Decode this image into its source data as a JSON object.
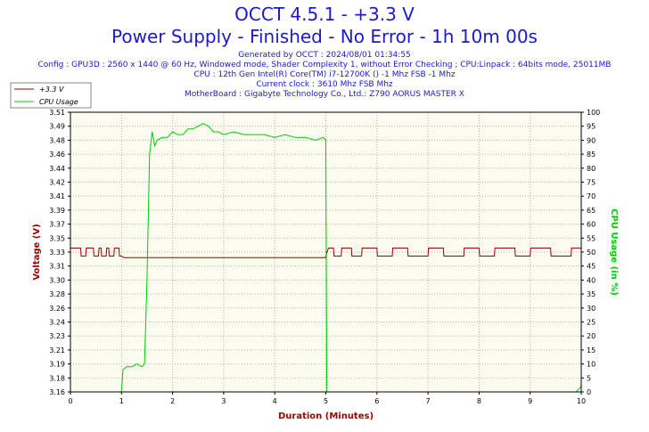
{
  "header": {
    "title": "OCCT 4.5.1 - +3.3 V",
    "subtitle": "Power Supply - Finished - No Error - 1h 10m 00s",
    "info_lines": [
      "Generated by OCCT : 2024/08/01 01:34:55",
      "Config : GPU3D : 2560 x 1440 @ 60 Hz, Windowed mode, Shader Complexity 1, without Error Checking ; CPU:Linpack : 64bits mode, 25011MB",
      "CPU : 12th Gen Intel(R) Core(TM) i7-12700K () -1 Mhz FSB -1 Mhz",
      "Current clock : 3610 Mhz FSB  Mhz",
      "MotherBoard : Gigabyte Technology Co., Ltd.: Z790 AORUS MASTER X"
    ]
  },
  "chart_data": {
    "type": "line",
    "xlabel": "Duration (Minutes)",
    "ylabel": "Voltage (V)",
    "y2label": "CPU Usage (in %)",
    "xlim": [
      0,
      10
    ],
    "ylim": [
      3.16,
      3.51
    ],
    "y2lim": [
      0,
      100
    ],
    "x_ticks": [
      0,
      1,
      2,
      3,
      4,
      5,
      6,
      7,
      8,
      9,
      10
    ],
    "y_ticks": [
      3.16,
      3.18,
      3.19,
      3.21,
      3.23,
      3.24,
      3.26,
      3.28,
      3.3,
      3.31,
      3.33,
      3.35,
      3.37,
      3.39,
      3.41,
      3.42,
      3.44,
      3.46,
      3.48,
      3.49,
      3.51
    ],
    "y2_ticks": [
      0,
      5,
      10,
      15,
      20,
      25,
      30,
      35,
      40,
      45,
      50,
      55,
      60,
      65,
      70,
      75,
      80,
      85,
      90,
      95,
      100
    ],
    "grid": true,
    "legend": "top-left",
    "series": [
      {
        "name": "+3.3 V",
        "axis": "left",
        "color": "#a00000",
        "x": [
          0.0,
          0.2,
          0.21,
          0.3,
          0.31,
          0.45,
          0.46,
          0.55,
          0.56,
          0.6,
          0.61,
          0.7,
          0.71,
          0.75,
          0.76,
          0.85,
          0.86,
          0.95,
          0.96,
          1.0,
          1.05,
          1.5,
          2.0,
          3.0,
          4.0,
          4.99,
          5.05,
          5.15,
          5.16,
          5.3,
          5.31,
          5.5,
          5.51,
          5.7,
          5.71,
          6.0,
          6.01,
          6.3,
          6.31,
          6.6,
          6.61,
          7.0,
          7.01,
          7.3,
          7.31,
          7.7,
          7.71,
          8.0,
          8.01,
          8.3,
          8.31,
          8.7,
          8.71,
          9.0,
          9.01,
          9.4,
          9.41,
          9.8,
          9.81,
          10.0
        ],
        "values": [
          3.34,
          3.34,
          3.33,
          3.33,
          3.34,
          3.34,
          3.33,
          3.33,
          3.34,
          3.34,
          3.33,
          3.33,
          3.34,
          3.34,
          3.33,
          3.33,
          3.34,
          3.34,
          3.33,
          3.33,
          3.328,
          3.328,
          3.328,
          3.328,
          3.328,
          3.328,
          3.34,
          3.34,
          3.33,
          3.33,
          3.34,
          3.34,
          3.33,
          3.33,
          3.34,
          3.34,
          3.33,
          3.33,
          3.34,
          3.34,
          3.33,
          3.33,
          3.34,
          3.34,
          3.33,
          3.33,
          3.34,
          3.34,
          3.33,
          3.33,
          3.34,
          3.34,
          3.33,
          3.33,
          3.34,
          3.34,
          3.33,
          3.33,
          3.34,
          3.34
        ]
      },
      {
        "name": "CPU Usage",
        "axis": "right",
        "color": "#00cc00",
        "x": [
          0.0,
          0.5,
          1.0,
          1.03,
          1.1,
          1.2,
          1.3,
          1.4,
          1.45,
          1.5,
          1.55,
          1.6,
          1.65,
          1.7,
          1.8,
          1.9,
          2.0,
          2.1,
          2.2,
          2.3,
          2.4,
          2.5,
          2.6,
          2.7,
          2.8,
          2.9,
          3.0,
          3.2,
          3.4,
          3.6,
          3.8,
          4.0,
          4.2,
          4.4,
          4.6,
          4.8,
          4.95,
          5.0,
          5.02,
          5.5,
          6.0,
          7.0,
          8.0,
          9.0,
          9.9,
          10.0
        ],
        "values": [
          0,
          0,
          0,
          8,
          9,
          9,
          10,
          9,
          10,
          40,
          85,
          93,
          88,
          90,
          91,
          91,
          93,
          92,
          92,
          94,
          94,
          95,
          96,
          95,
          93,
          93,
          92,
          93,
          92,
          92,
          92,
          91,
          92,
          91,
          91,
          90,
          91,
          90,
          0,
          0,
          0,
          0,
          0,
          0,
          0,
          2
        ]
      }
    ]
  }
}
